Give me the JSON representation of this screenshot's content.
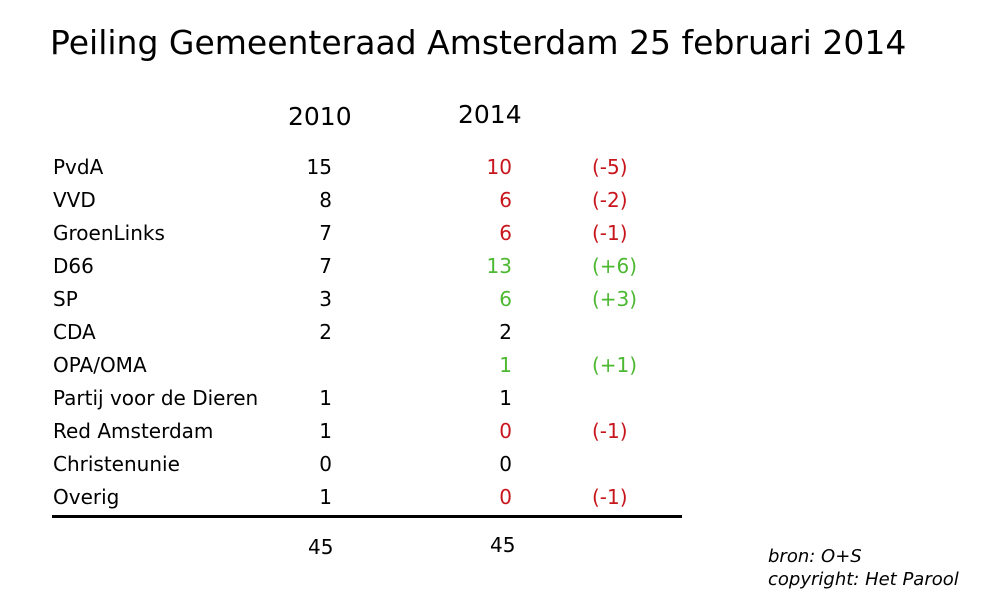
{
  "header": {
    "title": "Peiling Gemeenteraad Amsterdam 25 februari 2014"
  },
  "table": {
    "columns": [
      "2010",
      "2014"
    ],
    "rows": [
      {
        "party": "PvdA",
        "y2010": 15,
        "y2014": 10,
        "change": "(-5)",
        "color": "#c8161d"
      },
      {
        "party": "VVD",
        "y2010": 8,
        "y2014": 6,
        "change": "(-2)",
        "color": "#c8161d"
      },
      {
        "party": "GroenLinks",
        "y2010": 7,
        "y2014": 6,
        "change": "(-1)",
        "color": "#c8161d"
      },
      {
        "party": "D66",
        "y2010": 7,
        "y2014": 13,
        "change": "(+6)",
        "color": "#4db832"
      },
      {
        "party": "SP",
        "y2010": 3,
        "y2014": 6,
        "change": "(+3)",
        "color": "#4db832"
      },
      {
        "party": "CDA",
        "y2010": 2,
        "y2014": 2,
        "change": null,
        "color": "#000000"
      },
      {
        "party": "OPA/OMA",
        "y2010": null,
        "y2014": 1,
        "change": "(+1)",
        "color": "#4db832"
      },
      {
        "party": "Partij voor de Dieren",
        "y2010": 1,
        "y2014": 1,
        "change": null,
        "color": "#000000"
      },
      {
        "party": "Red Amsterdam",
        "y2010": 1,
        "y2014": 0,
        "change": "(-1)",
        "color": "#c8161d"
      },
      {
        "party": "Christenunie",
        "y2010": 0,
        "y2014": 0,
        "change": null,
        "color": "#000000"
      },
      {
        "party": "Overig",
        "y2010": 1,
        "y2014": 0,
        "change": "(-1)",
        "color": "#c8161d"
      }
    ],
    "totals": [
      45,
      45
    ]
  },
  "footer": {
    "source": "bron: O+S",
    "copyright": "copyright: Het Parool"
  }
}
